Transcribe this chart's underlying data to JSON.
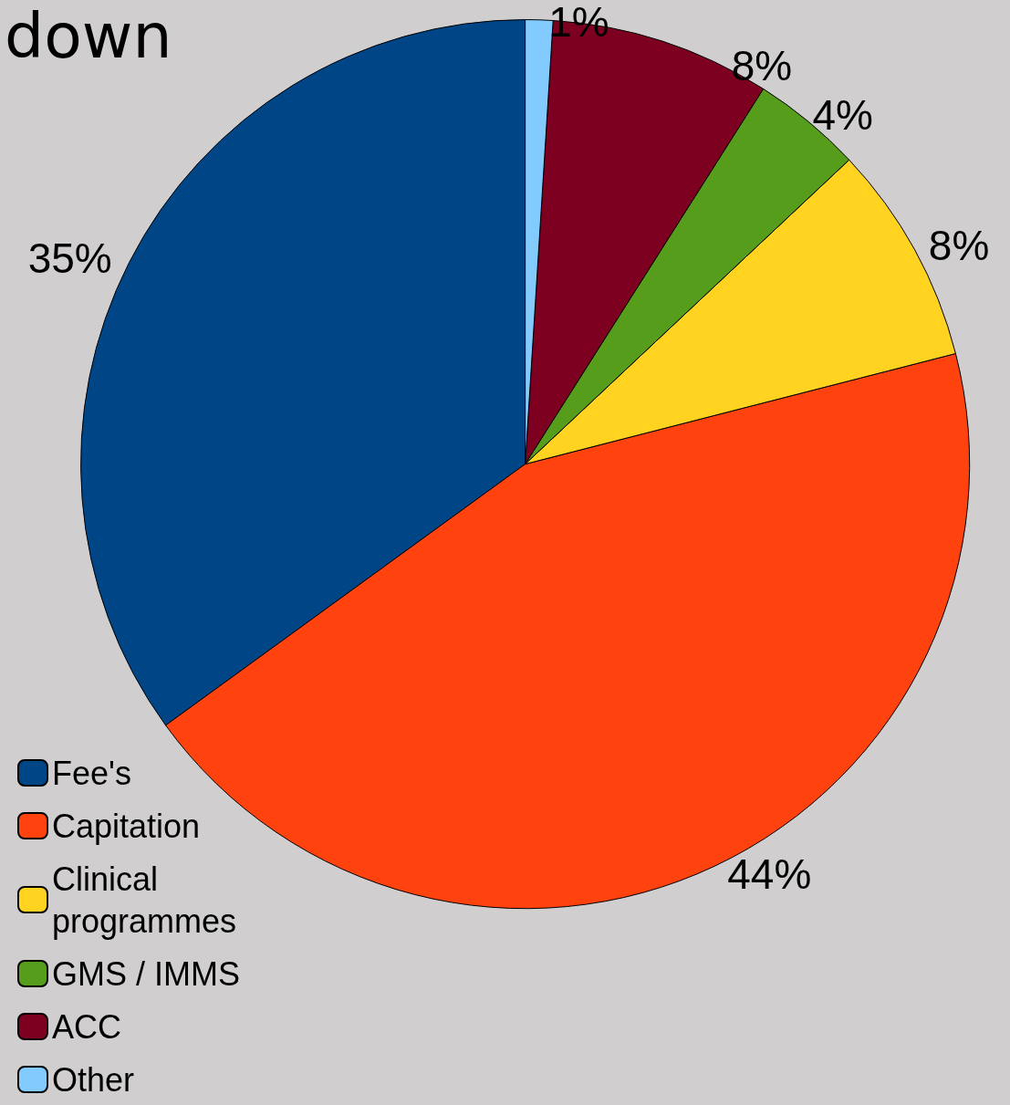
{
  "chart_data": {
    "type": "pie",
    "title": "down",
    "categories": [
      "Fee's",
      "Capitation",
      "Clinical programmes",
      "GMS / IMMS",
      "ACC",
      "Other"
    ],
    "values": [
      35,
      44,
      8,
      4,
      8,
      1
    ],
    "value_labels": [
      "35%",
      "44%",
      "8%",
      "4%",
      "8%",
      "1%"
    ],
    "colors": [
      "#004586",
      "#ff420e",
      "#ffd320",
      "#579d1c",
      "#7e0021",
      "#83caff"
    ],
    "legend": "bottom left"
  }
}
